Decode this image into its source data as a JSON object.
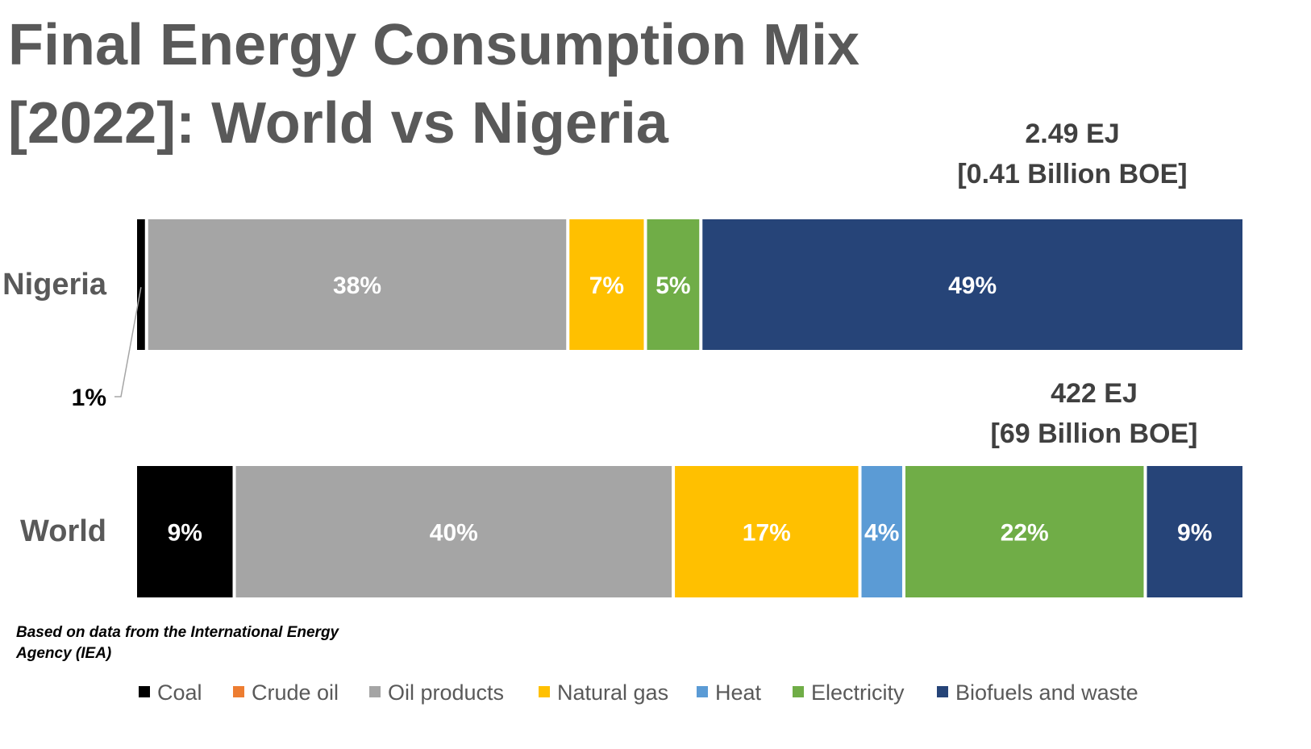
{
  "title_lines": [
    "Final Energy Consumption Mix",
    "[2022]: World vs Nigeria"
  ],
  "source_note_lines": [
    "Based on data from the International Energy",
    "Agency (IEA)"
  ],
  "chart_data": {
    "type": "bar",
    "orientation": "horizontal",
    "stacked": true,
    "stack_mode": "percent",
    "title": "Final Energy Consumption Mix [2022]: World vs Nigeria",
    "categories": [
      "Nigeria",
      "World"
    ],
    "totals": [
      {
        "category": "Nigeria",
        "lines": [
          "2.49 EJ",
          "[0.41 Billion BOE]"
        ]
      },
      {
        "category": "World",
        "lines": [
          "422 EJ",
          "[69 Billion BOE]"
        ]
      }
    ],
    "series": [
      {
        "name": "Coal",
        "color": "#000000",
        "values": [
          1,
          9
        ],
        "labels": [
          "1%",
          "9%"
        ]
      },
      {
        "name": "Crude oil",
        "color": "#ED7D31",
        "values": [
          0,
          0
        ],
        "labels": [
          "",
          ""
        ]
      },
      {
        "name": "Oil products",
        "color": "#A5A5A5",
        "values": [
          38,
          40
        ],
        "labels": [
          "38%",
          "40%"
        ]
      },
      {
        "name": "Natural gas",
        "color": "#FFC000",
        "values": [
          7,
          17
        ],
        "labels": [
          "7%",
          "17%"
        ]
      },
      {
        "name": "Heat",
        "color": "#5B9BD5",
        "values": [
          0,
          4
        ],
        "labels": [
          "",
          "4%"
        ]
      },
      {
        "name": "Electricity",
        "color": "#70AD47",
        "values": [
          5,
          22
        ],
        "labels": [
          "5%",
          "22%"
        ]
      },
      {
        "name": "Biofuels and waste",
        "color": "#264478",
        "values": [
          49,
          9
        ],
        "labels": [
          "49%",
          "9%"
        ]
      }
    ],
    "legend_position": "bottom",
    "grid": false,
    "xlabel": "",
    "ylabel": ""
  }
}
